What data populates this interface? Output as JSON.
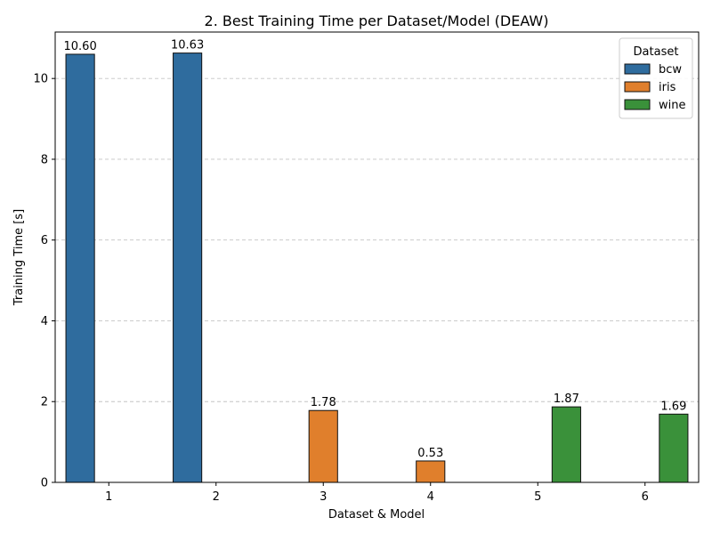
{
  "chart_data": {
    "type": "bar",
    "title": "2. Best Training Time per Dataset/Model (DEAW)",
    "xlabel": "Dataset & Model",
    "ylabel": "Training Time [s]",
    "ylim": [
      0,
      11.15
    ],
    "yticks": [
      0,
      2,
      4,
      6,
      8,
      10
    ],
    "grid": "horizontal dashed",
    "categories": [
      "1",
      "2",
      "3",
      "4",
      "5",
      "6"
    ],
    "series": [
      {
        "name": "bcw",
        "color": "#2f6c9e",
        "values": [
          10.6,
          10.63,
          null,
          null,
          null,
          null
        ]
      },
      {
        "name": "iris",
        "color": "#e07f2c",
        "values": [
          null,
          null,
          1.78,
          0.53,
          null,
          null
        ]
      },
      {
        "name": "wine",
        "color": "#3a913a",
        "values": [
          null,
          null,
          null,
          null,
          1.87,
          1.69
        ]
      }
    ],
    "data_labels": [
      "10.60",
      "10.63",
      "1.78",
      "0.53",
      "1.87",
      "1.69"
    ],
    "legend": {
      "title": "Dataset",
      "position": "top-right"
    }
  }
}
